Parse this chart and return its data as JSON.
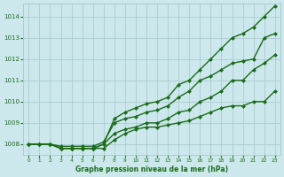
{
  "xlabel": "Graphe pression niveau de la mer (hPa)",
  "xlim": [
    -0.5,
    23.5
  ],
  "ylim": [
    1007.5,
    1014.6
  ],
  "yticks": [
    1008,
    1009,
    1010,
    1011,
    1012,
    1013,
    1014
  ],
  "xticks": [
    0,
    1,
    2,
    3,
    4,
    5,
    6,
    7,
    8,
    9,
    10,
    11,
    12,
    13,
    14,
    15,
    16,
    17,
    18,
    19,
    20,
    21,
    22,
    23
  ],
  "bg_color": "#cce8ec",
  "grid_color": "#aaccd0",
  "line_color": "#1a6b1a",
  "line_width": 1.0,
  "marker": "D",
  "marker_size": 2.0,
  "series": [
    [
      1008.0,
      1008.0,
      1008.0,
      1007.8,
      1007.8,
      1007.8,
      1007.8,
      1007.8,
      1008.2,
      1008.5,
      1008.7,
      1008.8,
      1008.8,
      1008.9,
      1009.0,
      1009.1,
      1009.3,
      1009.5,
      1009.7,
      1009.8,
      1009.8,
      1010.0,
      1010.0,
      1010.5
    ],
    [
      1008.0,
      1008.0,
      1008.0,
      1007.8,
      1007.8,
      1007.8,
      1007.8,
      1008.0,
      1008.5,
      1008.7,
      1008.8,
      1009.0,
      1009.0,
      1009.2,
      1009.5,
      1009.6,
      1010.0,
      1010.2,
      1010.5,
      1011.0,
      1011.0,
      1011.5,
      1011.8,
      1012.2
    ],
    [
      1008.0,
      1008.0,
      1008.0,
      1007.9,
      1007.9,
      1007.9,
      1007.9,
      1008.1,
      1009.0,
      1009.2,
      1009.3,
      1009.5,
      1009.6,
      1009.8,
      1010.2,
      1010.5,
      1011.0,
      1011.2,
      1011.5,
      1011.8,
      1011.9,
      1012.0,
      1013.0,
      1013.2
    ],
    [
      1008.0,
      1008.0,
      1008.0,
      1007.8,
      1007.8,
      1007.8,
      1007.8,
      1008.0,
      1009.2,
      1009.5,
      1009.7,
      1009.9,
      1010.0,
      1010.2,
      1010.8,
      1011.0,
      1011.5,
      1012.0,
      1012.5,
      1013.0,
      1013.2,
      1013.5,
      1014.0,
      1014.5
    ]
  ]
}
